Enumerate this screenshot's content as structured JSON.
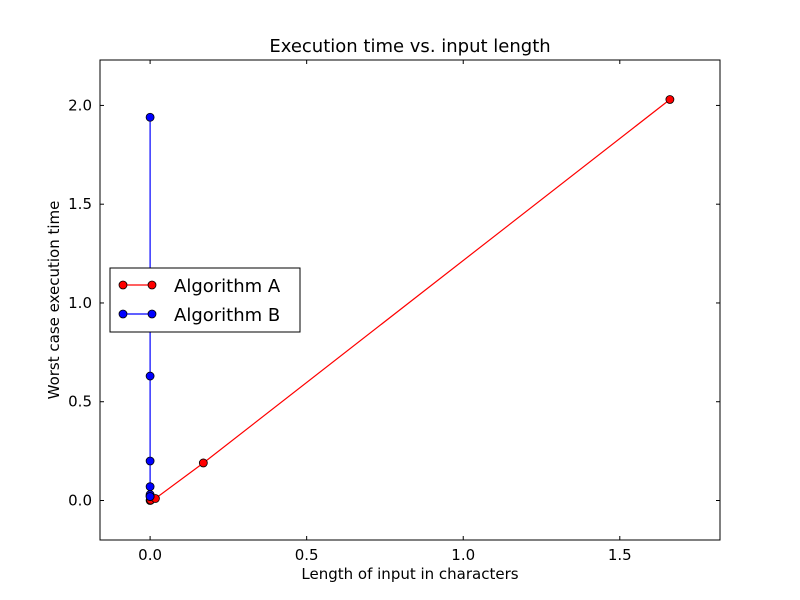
{
  "chart_data": {
    "type": "line",
    "title": "Execution time vs. input length",
    "xlabel": "Length of input in characters",
    "ylabel": "Worst case execution time",
    "xlim": [
      -0.16,
      1.82
    ],
    "ylim": [
      -0.2,
      2.23
    ],
    "xticks": [
      0.0,
      0.5,
      1.0,
      1.5
    ],
    "xtick_labels": [
      "0.0",
      "0.5",
      "1.0",
      "1.5"
    ],
    "yticks": [
      0.0,
      0.5,
      1.0,
      1.5,
      2.0
    ],
    "ytick_labels": [
      "0.0",
      "0.5",
      "1.0",
      "1.5",
      "2.0"
    ],
    "grid": false,
    "legend": "center-left",
    "series": [
      {
        "name": "Algorithm A",
        "color": "#ff0000",
        "marker": "circle",
        "x": [
          0.0,
          0.002,
          0.017,
          0.17,
          1.66
        ],
        "y": [
          0.0,
          0.002,
          0.01,
          0.19,
          2.03
        ]
      },
      {
        "name": "Algorithm B",
        "color": "#0000ff",
        "marker": "circle",
        "x": [
          0.0,
          0.0,
          0.0,
          0.0,
          0.0,
          0.0,
          0.0
        ],
        "y": [
          0.02,
          0.03,
          0.07,
          0.2,
          0.63,
          1.94,
          0.02
        ]
      }
    ]
  }
}
